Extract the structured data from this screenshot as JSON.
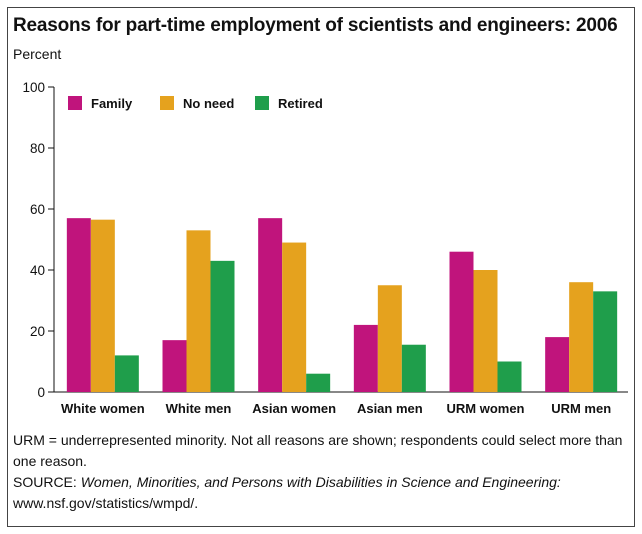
{
  "title": "Reasons for part-time employment of scientists and engineers: 2006",
  "note": "URM = underrepresented minority. Not all reasons are shown; respondents could select more than one reason.",
  "source": {
    "prefix": "SOURCE:",
    "publication": "Women, Minorities, and Persons with Disabilities in Science and Engineering:",
    "url": "www.nsf.gov/statistics/wmpd/."
  },
  "chart_data": {
    "type": "bar",
    "ylabel": "Percent",
    "ylim": [
      0,
      100
    ],
    "yticks": [
      0,
      20,
      40,
      60,
      80,
      100
    ],
    "grid": false,
    "legend_position": "top-left",
    "categories": [
      "White women",
      "White men",
      "Asian women",
      "Asian men",
      "URM women",
      "URM men"
    ],
    "series": [
      {
        "name": "Family",
        "color": "#c0147c",
        "values": [
          57,
          17,
          57,
          22,
          46,
          18
        ]
      },
      {
        "name": "No need",
        "color": "#e5a21e",
        "values": [
          56.5,
          53,
          49,
          35,
          40,
          36
        ]
      },
      {
        "name": "Retired",
        "color": "#1f9e4b",
        "values": [
          12,
          43,
          6,
          15.5,
          10,
          33
        ]
      }
    ]
  }
}
